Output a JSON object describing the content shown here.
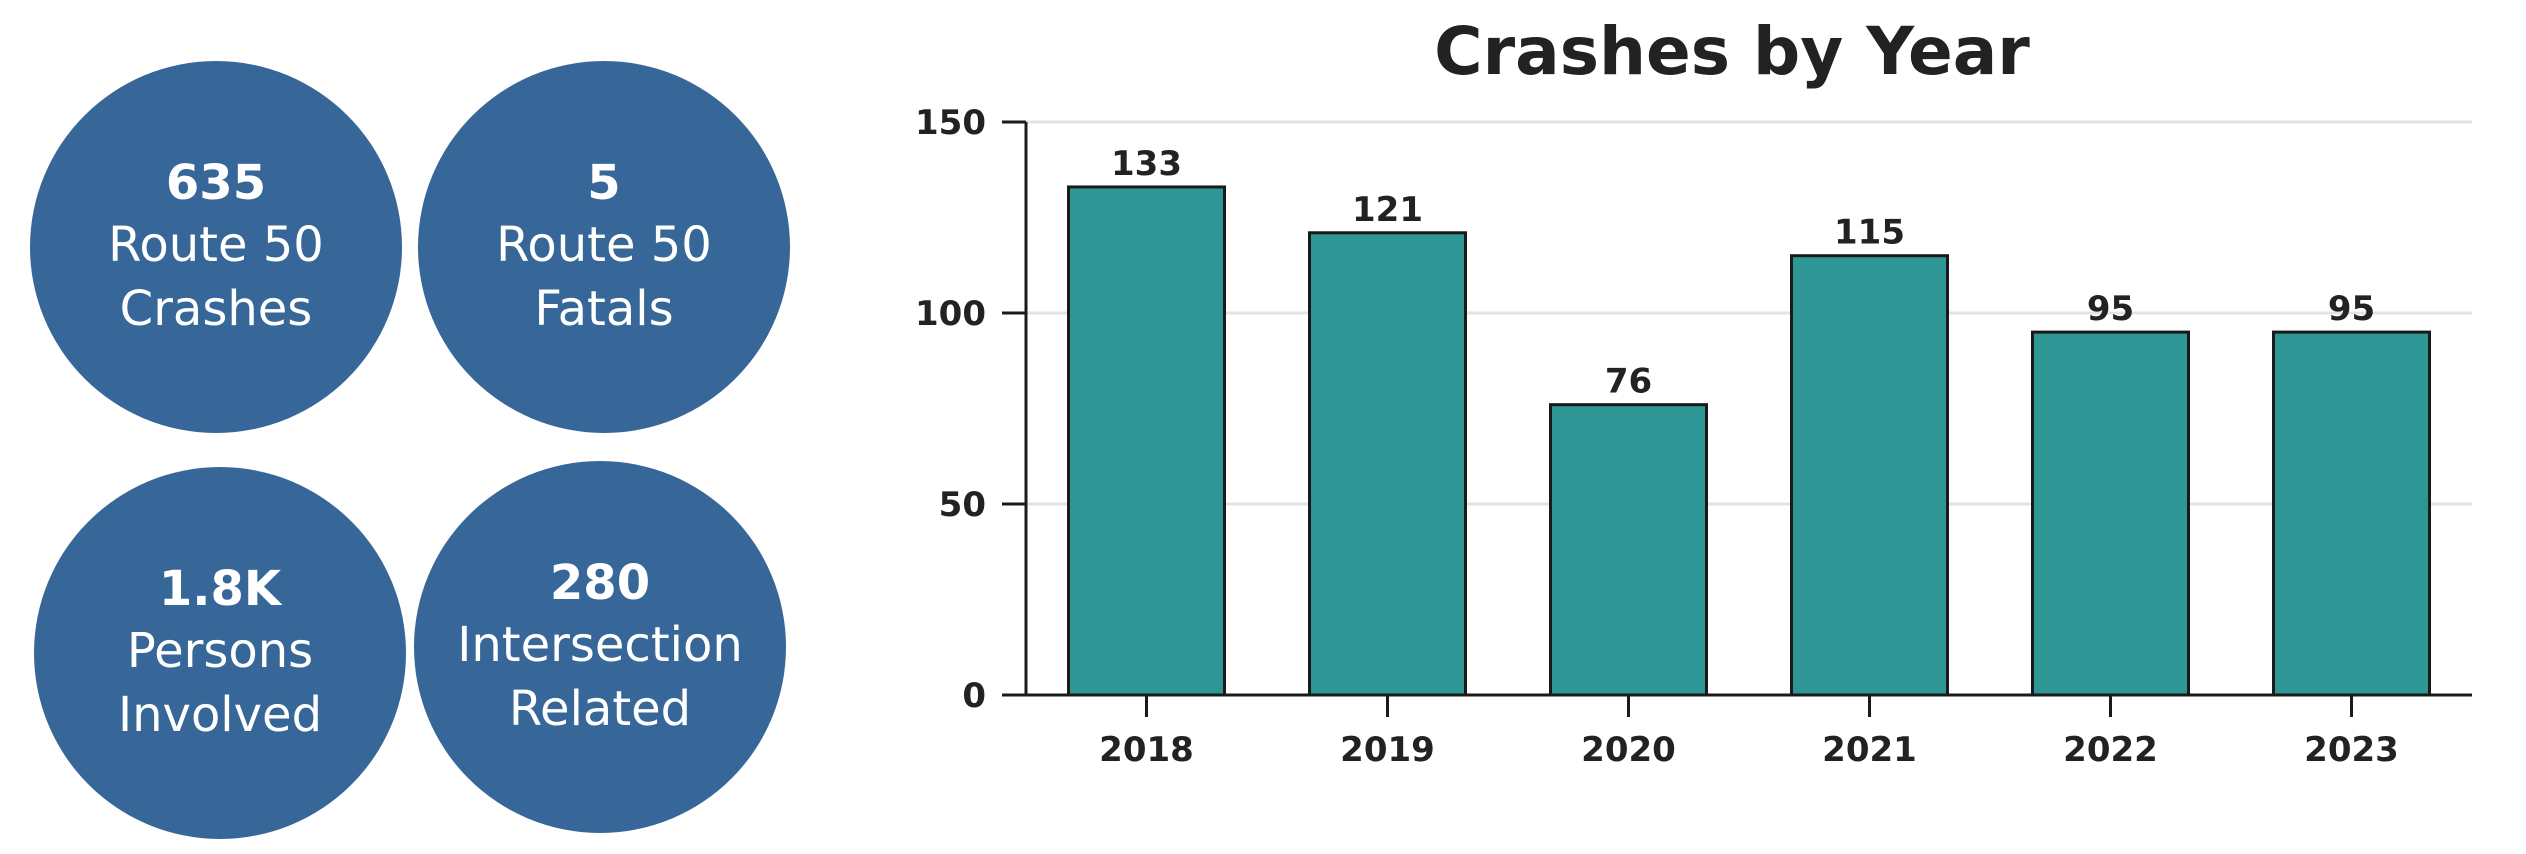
{
  "stats": [
    {
      "value": "635",
      "label": "Route 50 Crashes"
    },
    {
      "value": "5",
      "label": "Route 50 Fatals"
    },
    {
      "value": "1.8K",
      "label": "Persons Involved"
    },
    {
      "value": "280",
      "label": "Intersection Related"
    }
  ],
  "colors": {
    "circle": "#376699",
    "bar": "#2e9795",
    "bar_outline": "#1a1a1a",
    "grid": "#e3e3e3",
    "text": "#222222"
  },
  "chart_data": {
    "type": "bar",
    "title": "Crashes by Year",
    "xlabel": "",
    "ylabel": "",
    "categories": [
      "2018",
      "2019",
      "2020",
      "2021",
      "2022",
      "2023"
    ],
    "values": [
      133,
      121,
      76,
      115,
      95,
      95
    ],
    "ylim": [
      0,
      150
    ],
    "yticks": [
      0,
      50,
      100,
      150
    ],
    "grid": true,
    "legend": "none",
    "data_labels": true
  }
}
